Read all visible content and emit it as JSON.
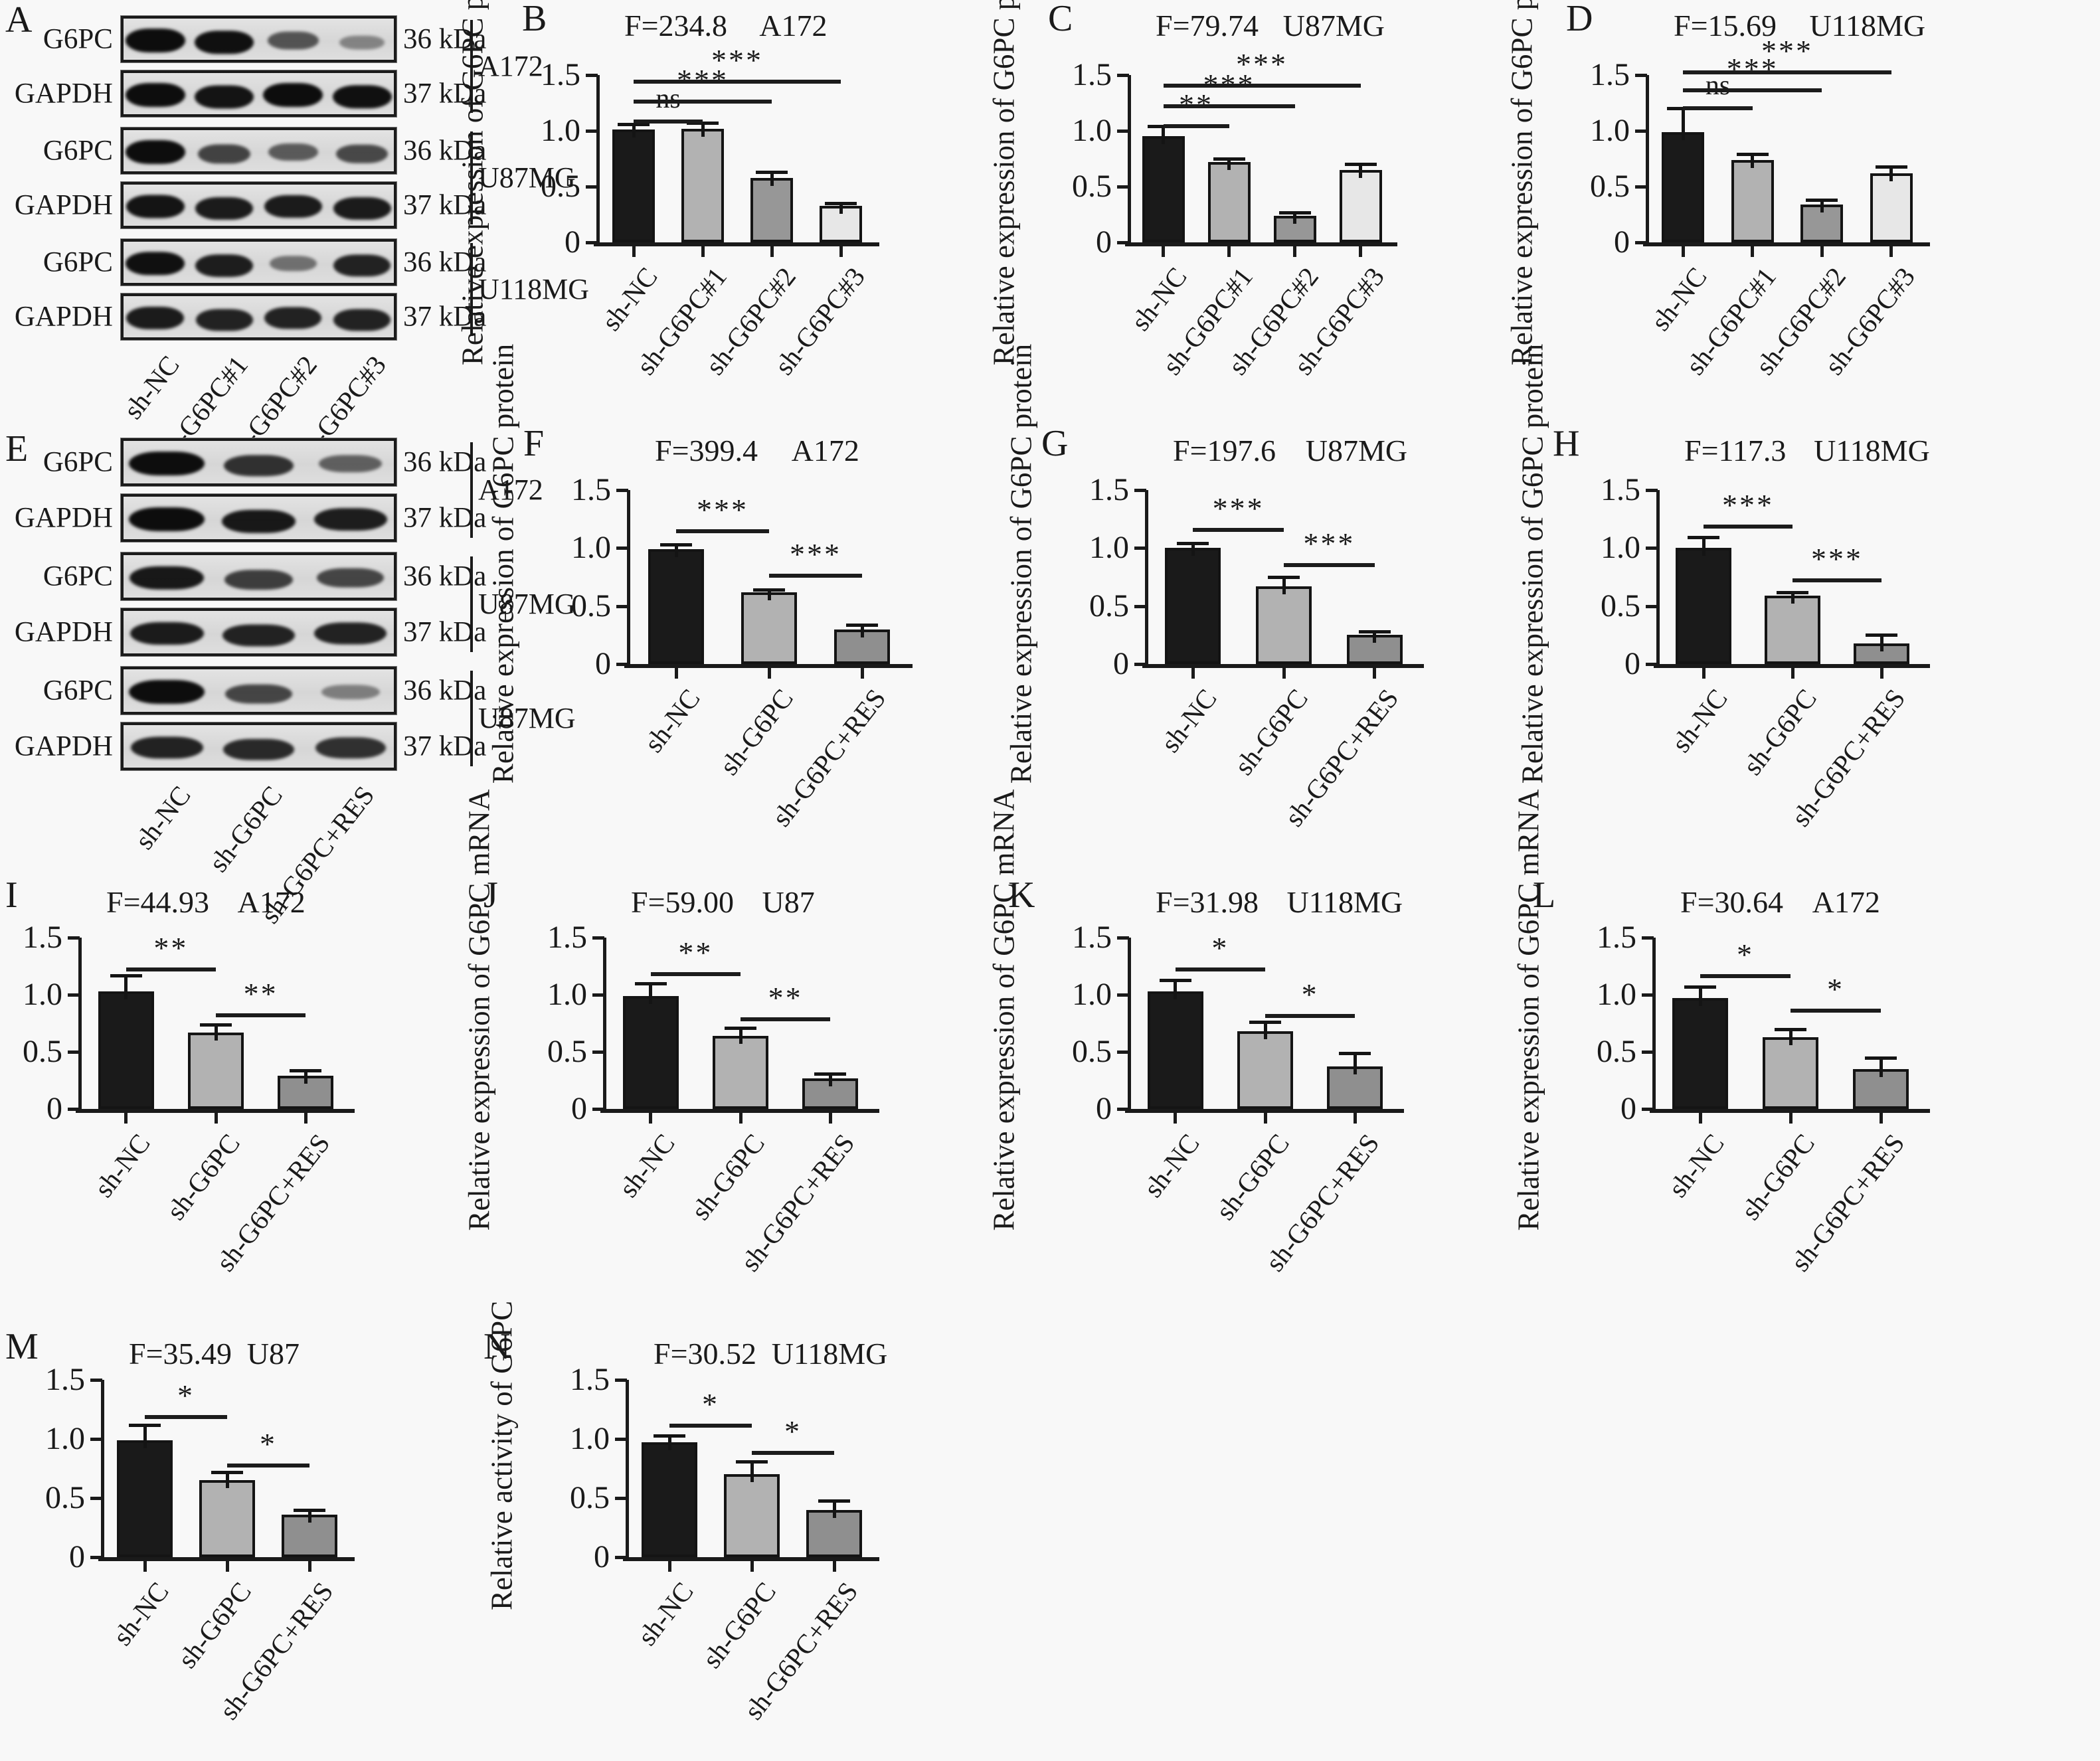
{
  "figure": {
    "background_color": "#f8f8f8",
    "bar_palette_4": [
      "#1a1a1a",
      "#b2b2b2",
      "#979797",
      "#e7e7e7"
    ],
    "bar_palette_3": [
      "#1a1a1a",
      "#b2b2b2",
      "#8f8f8f"
    ]
  },
  "western_blots": [
    {
      "panel": "A",
      "lane_labels": [
        "sh-NC",
        "sh-G6PC#1",
        "sh-G6PC#2",
        "sh-G6PC#3"
      ],
      "groups": [
        {
          "cell_line": "A172",
          "strips": [
            {
              "antibody": "G6PC",
              "mw": "36 kDa",
              "bands": [
                1.0,
                0.97,
                0.5,
                0.16
              ]
            },
            {
              "antibody": "GAPDH",
              "mw": "37 kDa",
              "bands": [
                1.0,
                0.95,
                1.0,
                0.97
              ]
            }
          ]
        },
        {
          "cell_line": "U87MG",
          "strips": [
            {
              "antibody": "G6PC",
              "mw": "36 kDa",
              "bands": [
                1.0,
                0.62,
                0.45,
                0.58
              ]
            },
            {
              "antibody": "GAPDH",
              "mw": "37 kDa",
              "bands": [
                0.95,
                0.9,
                0.9,
                0.9
              ]
            }
          ]
        },
        {
          "cell_line": "U118MG",
          "strips": [
            {
              "antibody": "G6PC",
              "mw": "36 kDa",
              "bands": [
                0.97,
                0.88,
                0.3,
                0.85
              ]
            },
            {
              "antibody": "GAPDH",
              "mw": "37 kDa",
              "bands": [
                0.9,
                0.85,
                0.85,
                0.85
              ]
            }
          ]
        }
      ]
    },
    {
      "panel": "E",
      "lane_labels": [
        "sh-NC",
        "sh-G6PC",
        "sh-G6PC+RES"
      ],
      "groups": [
        {
          "cell_line": "A172",
          "strips": [
            {
              "antibody": "G6PC",
              "mw": "36 kDa",
              "bands": [
                1.0,
                0.75,
                0.42
              ]
            },
            {
              "antibody": "GAPDH",
              "mw": "37 kDa",
              "bands": [
                1.0,
                0.92,
                0.88
              ]
            }
          ]
        },
        {
          "cell_line": "U87MG",
          "strips": [
            {
              "antibody": "G6PC",
              "mw": "36 kDa",
              "bands": [
                0.92,
                0.66,
                0.6
              ]
            },
            {
              "antibody": "GAPDH",
              "mw": "37 kDa",
              "bands": [
                0.9,
                0.85,
                0.85
              ]
            }
          ]
        },
        {
          "cell_line": "U87MG",
          "strips": [
            {
              "antibody": "G6PC",
              "mw": "36 kDa",
              "bands": [
                1.0,
                0.6,
                0.2
              ]
            },
            {
              "antibody": "GAPDH",
              "mw": "37 kDa",
              "bands": [
                0.85,
                0.8,
                0.75
              ]
            }
          ]
        }
      ]
    }
  ],
  "chart_data": [
    {
      "panel": "B",
      "type": "bar",
      "f_stat": "F=234.8",
      "title": "A172",
      "ylabel": "Relative expression of G6PC protein",
      "ylim": [
        0,
        1.5
      ],
      "yticks": [
        0,
        0.5,
        1.0,
        1.5
      ],
      "ytick_labels": [
        "0",
        "0.5",
        "1.0",
        "1.5"
      ],
      "categories": [
        "sh-NC",
        "sh-G6PC#1",
        "sh-G6PC#2",
        "sh-G6PC#3"
      ],
      "values": [
        1.01,
        1.02,
        0.58,
        0.33
      ],
      "errors": [
        0.05,
        0.05,
        0.05,
        0.02
      ],
      "significance": [
        {
          "from": 0,
          "to": 1,
          "label": "ns",
          "height": 1.1
        },
        {
          "from": 0,
          "to": 2,
          "label": "***",
          "height": 1.28
        },
        {
          "from": 0,
          "to": 3,
          "label": "***",
          "height": 1.46
        }
      ]
    },
    {
      "panel": "C",
      "type": "bar",
      "f_stat": "F=79.74",
      "title": "U87MG",
      "ylabel": "Relative expression of G6PC protein",
      "ylim": [
        0,
        1.5
      ],
      "yticks": [
        0,
        0.5,
        1.0,
        1.5
      ],
      "ytick_labels": [
        "0",
        "0.5",
        "1.0",
        "1.5"
      ],
      "categories": [
        "sh-NC",
        "sh-G6PC#1",
        "sh-G6PC#2",
        "sh-G6PC#3"
      ],
      "values": [
        0.95,
        0.72,
        0.24,
        0.65
      ],
      "errors": [
        0.09,
        0.03,
        0.03,
        0.05
      ],
      "significance": [
        {
          "from": 0,
          "to": 1,
          "label": "**",
          "height": 1.06
        },
        {
          "from": 0,
          "to": 2,
          "label": "***",
          "height": 1.24
        },
        {
          "from": 0,
          "to": 3,
          "label": "***",
          "height": 1.42
        }
      ]
    },
    {
      "panel": "D",
      "type": "bar",
      "f_stat": "F=15.69",
      "title": "U118MG",
      "ylabel": "Relative expression of G6PC protein",
      "ylim": [
        0,
        1.5
      ],
      "yticks": [
        0,
        0.5,
        1.0,
        1.5
      ],
      "ytick_labels": [
        "0",
        "0.5",
        "1.0",
        "1.5"
      ],
      "categories": [
        "sh-NC",
        "sh-G6PC#1",
        "sh-G6PC#2",
        "sh-G6PC#3"
      ],
      "values": [
        0.99,
        0.74,
        0.34,
        0.62
      ],
      "errors": [
        0.21,
        0.05,
        0.04,
        0.06
      ],
      "significance": [
        {
          "from": 0,
          "to": 1,
          "label": "ns",
          "height": 1.22
        },
        {
          "from": 0,
          "to": 2,
          "label": "***",
          "height": 1.38
        },
        {
          "from": 0,
          "to": 3,
          "label": "***",
          "height": 1.54
        }
      ]
    },
    {
      "panel": "F",
      "type": "bar",
      "f_stat": "F=399.4",
      "title": "A172",
      "ylabel": "Relative expression of G6PC protein",
      "ylim": [
        0,
        1.5
      ],
      "yticks": [
        0,
        0.5,
        1.0,
        1.5
      ],
      "ytick_labels": [
        "0",
        "0.5",
        "1.0",
        "1.5"
      ],
      "categories": [
        "sh-NC",
        "sh-G6PC",
        "sh-G6PC+RES"
      ],
      "values": [
        0.99,
        0.62,
        0.3
      ],
      "errors": [
        0.04,
        0.02,
        0.04
      ],
      "significance": [
        {
          "from": 0,
          "to": 1,
          "label": "***",
          "height": 1.16
        },
        {
          "from": 1,
          "to": 2,
          "label": "***",
          "height": 0.78
        }
      ]
    },
    {
      "panel": "G",
      "type": "bar",
      "f_stat": "F=197.6",
      "title": "U87MG",
      "ylabel": "Relative expression of G6PC protein",
      "ylim": [
        0,
        1.5
      ],
      "yticks": [
        0,
        0.5,
        1.0,
        1.5
      ],
      "ytick_labels": [
        "0",
        "0.5",
        "1.0",
        "1.5"
      ],
      "categories": [
        "sh-NC",
        "sh-G6PC",
        "sh-G6PC+RES"
      ],
      "values": [
        1.0,
        0.67,
        0.25
      ],
      "errors": [
        0.04,
        0.08,
        0.03
      ],
      "significance": [
        {
          "from": 0,
          "to": 1,
          "label": "***",
          "height": 1.17
        },
        {
          "from": 1,
          "to": 2,
          "label": "***",
          "height": 0.87
        }
      ]
    },
    {
      "panel": "H",
      "type": "bar",
      "f_stat": "F=117.3",
      "title": "U118MG",
      "ylabel": "Relative expression of G6PC protein",
      "ylim": [
        0,
        1.5
      ],
      "yticks": [
        0,
        0.5,
        1.0,
        1.5
      ],
      "ytick_labels": [
        "0",
        "0.5",
        "1.0",
        "1.5"
      ],
      "categories": [
        "sh-NC",
        "sh-G6PC",
        "sh-G6PC+RES"
      ],
      "values": [
        1.0,
        0.59,
        0.18
      ],
      "errors": [
        0.09,
        0.03,
        0.07
      ],
      "significance": [
        {
          "from": 0,
          "to": 1,
          "label": "***",
          "height": 1.2
        },
        {
          "from": 1,
          "to": 2,
          "label": "***",
          "height": 0.74
        }
      ]
    },
    {
      "panel": "I",
      "type": "bar",
      "f_stat": "F=44.93",
      "title": "A172",
      "ylabel": "Relative expression of G6PC mRNA",
      "ylim": [
        0,
        1.5
      ],
      "yticks": [
        0,
        0.5,
        1.0,
        1.5
      ],
      "ytick_labels": [
        "0",
        "0.5",
        "1.0",
        "1.5"
      ],
      "categories": [
        "sh-NC",
        "sh-G6PC",
        "sh-G6PC+RES"
      ],
      "values": [
        1.03,
        0.67,
        0.29
      ],
      "errors": [
        0.14,
        0.07,
        0.05
      ],
      "significance": [
        {
          "from": 0,
          "to": 1,
          "label": "**",
          "height": 1.24
        },
        {
          "from": 1,
          "to": 2,
          "label": "**",
          "height": 0.84
        }
      ]
    },
    {
      "panel": "J",
      "type": "bar",
      "f_stat": "F=59.00",
      "title": "U87",
      "ylabel": "Relative expression of G6PC mRNA",
      "ylim": [
        0,
        1.5
      ],
      "yticks": [
        0,
        0.5,
        1.0,
        1.5
      ],
      "ytick_labels": [
        "0",
        "0.5",
        "1.0",
        "1.5"
      ],
      "categories": [
        "sh-NC",
        "sh-G6PC",
        "sh-G6PC+RES"
      ],
      "values": [
        0.99,
        0.64,
        0.27
      ],
      "errors": [
        0.11,
        0.07,
        0.04
      ],
      "significance": [
        {
          "from": 0,
          "to": 1,
          "label": "**",
          "height": 1.2
        },
        {
          "from": 1,
          "to": 2,
          "label": "**",
          "height": 0.8
        }
      ]
    },
    {
      "panel": "K",
      "type": "bar",
      "f_stat": "F=31.98",
      "title": "U118MG",
      "ylabel": "Relative expression of G6PC mRNA",
      "ylim": [
        0,
        1.5
      ],
      "yticks": [
        0,
        0.5,
        1.0,
        1.5
      ],
      "ytick_labels": [
        "0",
        "0.5",
        "1.0",
        "1.5"
      ],
      "categories": [
        "sh-NC",
        "sh-G6PC",
        "sh-G6PC+RES"
      ],
      "values": [
        1.03,
        0.68,
        0.37
      ],
      "errors": [
        0.1,
        0.08,
        0.12
      ],
      "significance": [
        {
          "from": 0,
          "to": 1,
          "label": "*",
          "height": 1.24
        },
        {
          "from": 1,
          "to": 2,
          "label": "*",
          "height": 0.83
        }
      ]
    },
    {
      "panel": "L",
      "type": "bar",
      "f_stat": "F=30.64",
      "title": "A172",
      "ylabel": "Relative expression of G6PC mRNA",
      "ylim": [
        0,
        1.5
      ],
      "yticks": [
        0,
        0.5,
        1.0,
        1.5
      ],
      "ytick_labels": [
        "0",
        "0.5",
        "1.0",
        "1.5"
      ],
      "categories": [
        "sh-NC",
        "sh-G6PC",
        "sh-G6PC+RES"
      ],
      "values": [
        0.97,
        0.63,
        0.35
      ],
      "errors": [
        0.1,
        0.07,
        0.1
      ],
      "significance": [
        {
          "from": 0,
          "to": 1,
          "label": "*",
          "height": 1.18
        },
        {
          "from": 1,
          "to": 2,
          "label": "*",
          "height": 0.88
        }
      ]
    },
    {
      "panel": "M",
      "type": "bar",
      "f_stat": "F=35.49",
      "title": "U87",
      "ylabel": "Relative activity of G6PC",
      "ylim": [
        0,
        1.5
      ],
      "yticks": [
        0,
        0.5,
        1.0,
        1.5
      ],
      "ytick_labels": [
        "0",
        "0.5",
        "1.0",
        "1.5"
      ],
      "categories": [
        "sh-NC",
        "sh-G6PC",
        "sh-G6PC+RES"
      ],
      "values": [
        0.99,
        0.65,
        0.36
      ],
      "errors": [
        0.13,
        0.07,
        0.04
      ],
      "significance": [
        {
          "from": 0,
          "to": 1,
          "label": "*",
          "height": 1.2
        },
        {
          "from": 1,
          "to": 2,
          "label": "*",
          "height": 0.79
        }
      ]
    },
    {
      "panel": "N",
      "type": "bar",
      "f_stat": "F=30.52",
      "title": "U118MG",
      "ylabel": "Relative activity of G6PC",
      "ylim": [
        0,
        1.5
      ],
      "yticks": [
        0,
        0.5,
        1.0,
        1.5
      ],
      "ytick_labels": [
        "0",
        "0.5",
        "1.0",
        "1.5"
      ],
      "categories": [
        "sh-NC",
        "sh-G6PC",
        "sh-G6PC+RES"
      ],
      "values": [
        0.97,
        0.7,
        0.4
      ],
      "errors": [
        0.06,
        0.11,
        0.08
      ],
      "significance": [
        {
          "from": 0,
          "to": 1,
          "label": "*",
          "height": 1.13
        },
        {
          "from": 1,
          "to": 2,
          "label": "*",
          "height": 0.9
        }
      ]
    }
  ]
}
